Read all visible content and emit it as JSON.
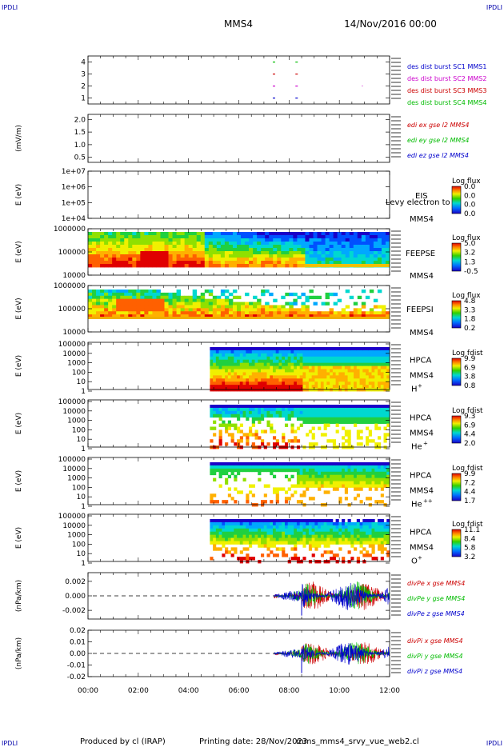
{
  "header": {
    "left_tag": "IPDLI",
    "right_tag": "IPDLI",
    "spacecraft": "MMS4",
    "date": "14/Nov/2016 00:00"
  },
  "footer": {
    "produced": "Produced by cl (IRAP)",
    "printing": "Printing date: 28/Nov/2023",
    "file": "mms_mms4_srvy_vue_web2.cl",
    "left_tag": "IPDLI",
    "right_tag": "IPDLI"
  },
  "chart_data": [
    {
      "id": "burst",
      "type": "scatter",
      "yticks": [
        1,
        2,
        3,
        4
      ],
      "ylim": [
        0.5,
        4.5
      ],
      "xlim": [
        0,
        12
      ],
      "legend": [
        {
          "text": "des dist burst SC1 MMS1",
          "color": "#0000cc"
        },
        {
          "text": "des dist burst SC2 MMS2",
          "color": "#cc00cc"
        },
        {
          "text": "des dist burst SC3 MMS3",
          "color": "#cc0000"
        },
        {
          "text": "des dist burst SC4 MMS4",
          "color": "#00bb00"
        }
      ],
      "marks": [
        {
          "x": 7.4,
          "y": 4,
          "color": "#00bb00"
        },
        {
          "x": 8.3,
          "y": 4,
          "color": "#00bb00"
        },
        {
          "x": 7.4,
          "y": 3,
          "color": "#cc0000"
        },
        {
          "x": 8.3,
          "y": 3,
          "color": "#cc0000"
        },
        {
          "x": 7.4,
          "y": 2,
          "color": "#cc00cc"
        },
        {
          "x": 8.3,
          "y": 2,
          "color": "#cc00cc"
        },
        {
          "x": 7.4,
          "y": 1,
          "color": "#0000cc"
        },
        {
          "x": 8.3,
          "y": 1,
          "color": "#0000cc"
        }
      ]
    },
    {
      "id": "edi",
      "type": "line",
      "ylabel": "(mV/m)",
      "yticks": [
        "2.0",
        "1.5",
        "1.0",
        "0.5"
      ],
      "ylim": [
        0.3,
        2.2
      ],
      "legend": [
        {
          "text": "edi ex gse l2 MMS4",
          "color": "#cc0000"
        },
        {
          "text": "edi ey gse l2 MMS4",
          "color": "#00bb00"
        },
        {
          "text": "edi ez gse l2 MMS4",
          "color": "#0000cc"
        }
      ]
    },
    {
      "id": "eis",
      "type": "heatmap",
      "ylabel": "E (eV)",
      "yticks": [
        "1e+07",
        "1e+06",
        "1e+05",
        "1e+04"
      ],
      "instrument": "EIS",
      "overlay": "Levy electron to",
      "sc": "MMS4",
      "cbar_title": "Log flux",
      "cbar_ticks": [
        "0.0",
        "0.0",
        "0.0",
        "0.0"
      ]
    },
    {
      "id": "feepse",
      "type": "heatmap",
      "ylabel": "E (eV)",
      "yticks": [
        "1000000",
        "100000",
        "10000"
      ],
      "instrument": "FEEPSE",
      "sc": "MMS4",
      "cbar_title": "Log flux",
      "cbar_ticks": [
        "5.0",
        "3.2",
        "1.3",
        "-0.5"
      ]
    },
    {
      "id": "feepsi",
      "type": "heatmap",
      "ylabel": "E (eV)",
      "yticks": [
        "1000000",
        "100000",
        "10000"
      ],
      "instrument": "FEEPSI",
      "sc": "MMS4",
      "cbar_title": "Log flux",
      "cbar_ticks": [
        "4.8",
        "3.3",
        "1.8",
        "0.2"
      ]
    },
    {
      "id": "hpca_h",
      "type": "heatmap",
      "ylabel": "E (eV)",
      "yticks": [
        "100000",
        "10000",
        "1000",
        "100",
        "10",
        "1"
      ],
      "instrument": "HPCA",
      "sc": "MMS4",
      "species": "H",
      "charge": "+",
      "cbar_title": "Log fdist",
      "cbar_ticks": [
        "9.9",
        "6.9",
        "3.8",
        "0.8"
      ]
    },
    {
      "id": "hpca_he1",
      "type": "heatmap",
      "ylabel": "E (eV)",
      "yticks": [
        "100000",
        "10000",
        "1000",
        "100",
        "10",
        "1"
      ],
      "instrument": "HPCA",
      "sc": "MMS4",
      "species": "He",
      "charge": "+",
      "cbar_title": "Log fdist",
      "cbar_ticks": [
        "9.3",
        "6.9",
        "4.4",
        "2.0"
      ]
    },
    {
      "id": "hpca_he2",
      "type": "heatmap",
      "ylabel": "E (eV)",
      "yticks": [
        "100000",
        "10000",
        "1000",
        "100",
        "10",
        "1"
      ],
      "instrument": "HPCA",
      "sc": "MMS4",
      "species": "He",
      "charge": "++",
      "cbar_title": "Log fdist",
      "cbar_ticks": [
        "9.9",
        "7.2",
        "4.4",
        "1.7"
      ]
    },
    {
      "id": "hpca_o",
      "type": "heatmap",
      "ylabel": "E (eV)",
      "yticks": [
        "100000",
        "10000",
        "1000",
        "100",
        "10",
        "1"
      ],
      "instrument": "HPCA",
      "sc": "MMS4",
      "species": "O",
      "charge": "+",
      "cbar_title": "Log fdist",
      "cbar_ticks": [
        "11.1",
        "8.4",
        "5.8",
        "3.2"
      ]
    },
    {
      "id": "divpe",
      "type": "line",
      "ylabel": "(nPa/km)",
      "yticks": [
        "0.002",
        "0.000",
        "-0.002"
      ],
      "ylim": [
        -0.0032,
        0.0032
      ],
      "legend": [
        {
          "text": "divPe x gse MMS4",
          "color": "#cc0000"
        },
        {
          "text": "divPe y gse MMS4",
          "color": "#00bb00"
        },
        {
          "text": "divPe z gse MMS4",
          "color": "#0000cc"
        }
      ]
    },
    {
      "id": "divpi",
      "type": "line",
      "ylabel": "(nPa/km)",
      "yticks": [
        "0.02",
        "0.01",
        "0.00",
        "-0.01",
        "-0.02"
      ],
      "ylim": [
        -0.02,
        0.02
      ],
      "legend": [
        {
          "text": "divPi x gse MMS4",
          "color": "#cc0000"
        },
        {
          "text": "divPi y gse MMS4",
          "color": "#00bb00"
        },
        {
          "text": "divPi z gse MMS4",
          "color": "#0000cc"
        }
      ],
      "xticks": [
        "00:00",
        "02:00",
        "04:00",
        "06:00",
        "08:00",
        "10:00",
        "12:00"
      ],
      "xlim": [
        0,
        12
      ]
    }
  ]
}
